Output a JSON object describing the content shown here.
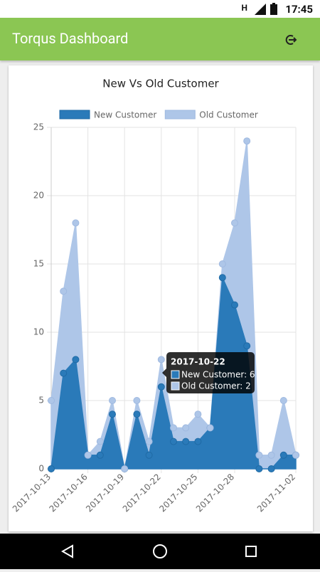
{
  "status_bar": {
    "network": "H",
    "time": "17:45"
  },
  "app_bar": {
    "title": "Torqus Dashboard"
  },
  "chart_data": {
    "type": "stacked-area",
    "title": "New Vs Old Customer",
    "categories": [
      "2017-10-13",
      null,
      null,
      "2017-10-16",
      null,
      null,
      "2017-10-19",
      null,
      null,
      "2017-10-22",
      null,
      null,
      "2017-10-25",
      null,
      null,
      "2017-10-28",
      null,
      null,
      null,
      null,
      "2017-11-02"
    ],
    "series": [
      {
        "name": "New Customer",
        "color": "#2a7ab9",
        "values": [
          0,
          7,
          8,
          1,
          1,
          4,
          0,
          4,
          1,
          6,
          2,
          2,
          2,
          3,
          14,
          12,
          9,
          0,
          0,
          1,
          1
        ]
      },
      {
        "name": "Old Customer",
        "color": "#aec6e8",
        "values": [
          5,
          6,
          10,
          0,
          1,
          1,
          0,
          1,
          1,
          2,
          1,
          1,
          2,
          0,
          1,
          6,
          15,
          1,
          1,
          4,
          0
        ]
      }
    ],
    "ylim": [
      0,
      25
    ],
    "yticks": [
      0,
      5,
      10,
      15,
      20,
      25
    ],
    "grid": true,
    "tooltip": {
      "title": "2017-10-22",
      "lines": [
        "New Customer: 6",
        "Old Customer: 2"
      ]
    }
  }
}
